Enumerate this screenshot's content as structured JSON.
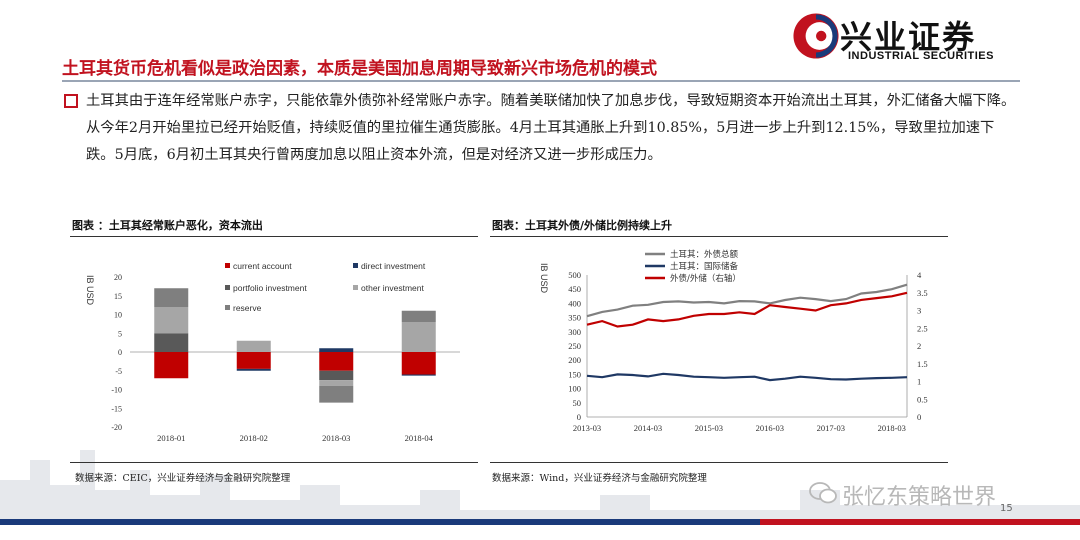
{
  "logo": {
    "cn": "兴业证券",
    "en": "INDUSTRIAL SECURITIES"
  },
  "title": "土耳其货币危机看似是政治因素，本质是美国加息周期导致新兴市场危机的模式",
  "body": "土耳其由于连年经常账户赤字，只能依靠外债弥补经常账户赤字。随着美联储加快了加息步伐，导致短期资本开始流出土耳其，外汇储备大幅下降。从今年2月开始里拉已经开始贬值，持续贬值的里拉催生通货膨胀。4月土耳其通胀上升到10.85%，5月进一步上升到12.15%，导致里拉加速下跌。5月底，6月初土耳其央行曾两度加息以阻止资本外流，但是对经济又进一步形成压力。",
  "left_panel": {
    "title": "图表 ：土耳其经常账户恶化，资本流出",
    "source": "数据来源：CEIC，兴业证券经济与金融研究院整理"
  },
  "right_panel": {
    "title": "图表：土耳其外债/外储比例持续上升",
    "source": "数据来源：Wind，兴业证券经济与金融研究院整理"
  },
  "watermark": "张忆东策略世界",
  "page_number": "15",
  "chart_data": [
    {
      "type": "bar",
      "stacked": true,
      "ylabel": "IB USD",
      "ylim": [
        -20,
        20
      ],
      "yticks": [
        "20",
        "15",
        "10",
        "5",
        "0",
        "-5",
        "-10",
        "-15",
        "-20"
      ],
      "categories": [
        "2018-01",
        "2018-02",
        "2018-03",
        "2018-04"
      ],
      "legend_position": "top",
      "series": [
        {
          "name": "current account",
          "color": "#c00000",
          "values": [
            -7,
            -4.5,
            -5,
            -6
          ]
        },
        {
          "name": "direct investment",
          "color": "#1f3864",
          "values": [
            0,
            -0.5,
            1,
            -0.3
          ]
        },
        {
          "name": "portfolio investment",
          "color": "#595959",
          "values": [
            5,
            0,
            -2.5,
            0
          ]
        },
        {
          "name": "other investment",
          "color": "#a6a6a6",
          "values": [
            7,
            3,
            -1.5,
            8
          ]
        },
        {
          "name": "reserve",
          "color": "#7f7f7f",
          "values": [
            5,
            0,
            -4.5,
            3
          ]
        }
      ]
    },
    {
      "type": "line",
      "ylabel": "IB USD",
      "ylim": [
        0,
        500
      ],
      "y2lim": [
        0,
        4
      ],
      "yticks": [
        "500",
        "450",
        "400",
        "350",
        "300",
        "250",
        "200",
        "150",
        "100",
        "50",
        "0"
      ],
      "y2ticks": [
        "4",
        "3.5",
        "3",
        "2.5",
        "2",
        "1.5",
        "1",
        "0.5",
        "0"
      ],
      "xticks": [
        "2013-03",
        "2014-03",
        "2015-03",
        "2016-03",
        "2017-03",
        "2018-03"
      ],
      "x": [
        "2013-03",
        "2013-06",
        "2013-09",
        "2013-12",
        "2014-03",
        "2014-06",
        "2014-09",
        "2014-12",
        "2015-03",
        "2015-06",
        "2015-09",
        "2015-12",
        "2016-03",
        "2016-06",
        "2016-09",
        "2016-12",
        "2017-03",
        "2017-06",
        "2017-09",
        "2017-12",
        "2018-03",
        "2018-06"
      ],
      "legend_position": "top",
      "series": [
        {
          "name": "土耳其：外债总额",
          "color": "#808080",
          "axis": "left",
          "values": [
            355,
            370,
            378,
            392,
            395,
            405,
            407,
            403,
            405,
            400,
            408,
            407,
            400,
            412,
            420,
            415,
            408,
            415,
            435,
            440,
            450,
            466
          ]
        },
        {
          "name": "土耳其：国际储备",
          "color": "#1f3864",
          "axis": "left",
          "values": [
            145,
            140,
            150,
            148,
            143,
            152,
            148,
            142,
            140,
            138,
            140,
            142,
            130,
            135,
            142,
            138,
            133,
            132,
            135,
            137,
            138,
            140
          ]
        },
        {
          "name": "外债/外储（右轴）",
          "color": "#c00000",
          "axis": "right",
          "values": [
            2.6,
            2.7,
            2.55,
            2.6,
            2.75,
            2.7,
            2.75,
            2.85,
            2.9,
            2.9,
            2.95,
            2.9,
            3.15,
            3.1,
            3.05,
            3.0,
            3.15,
            3.2,
            3.3,
            3.35,
            3.4,
            3.5
          ]
        }
      ]
    }
  ]
}
